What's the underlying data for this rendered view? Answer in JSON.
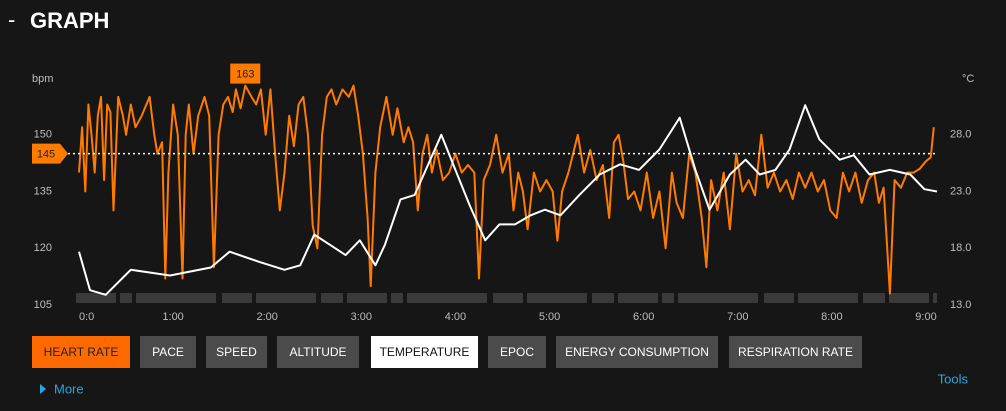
{
  "header": {
    "toggle": "-",
    "title": "GRAPH"
  },
  "chart_data": {
    "type": "line",
    "ylabel": "bpm",
    "y2label": "°C",
    "xlim": [
      0,
      547
    ],
    "ylim": [
      105,
      165
    ],
    "y2lim": [
      13,
      33
    ],
    "xticks": [
      {
        "value": 0,
        "label": "0:0"
      },
      {
        "value": 60,
        "label": "1:00"
      },
      {
        "value": 120,
        "label": "2:00"
      },
      {
        "value": 180,
        "label": "3:00"
      },
      {
        "value": 240,
        "label": "4:00"
      },
      {
        "value": 300,
        "label": "5:00"
      },
      {
        "value": 360,
        "label": "6:00"
      },
      {
        "value": 420,
        "label": "7:00"
      },
      {
        "value": 480,
        "label": "8:00"
      },
      {
        "value": 540,
        "label": "9:00"
      }
    ],
    "yticks": [
      105,
      120,
      135,
      150
    ],
    "y2ticks": [
      {
        "value": 13,
        "label": "13.0"
      },
      {
        "value": 18,
        "label": "18.0"
      },
      {
        "value": 23,
        "label": "23.0"
      },
      {
        "value": 28,
        "label": "28.0"
      }
    ],
    "average": 145,
    "max": 163,
    "series": [
      {
        "name": "HEART RATE",
        "color": "#ff7b00",
        "x": [
          0,
          2,
          4,
          6,
          8,
          10,
          12,
          14,
          16,
          18,
          20,
          22,
          25,
          28,
          30,
          33,
          36,
          40,
          45,
          48,
          50,
          53,
          55,
          57,
          60,
          63,
          66,
          68,
          70,
          73,
          76,
          80,
          83,
          86,
          89,
          92,
          95,
          98,
          100,
          103,
          106,
          110,
          113,
          116,
          119,
          122,
          125,
          128,
          131,
          134,
          137,
          140,
          143,
          146,
          149,
          152,
          155,
          158,
          161,
          164,
          168,
          172,
          175,
          178,
          181,
          184,
          186,
          189,
          192,
          196,
          200,
          203,
          207,
          210,
          213,
          216,
          219,
          222,
          225,
          228,
          232,
          236,
          240,
          244,
          248,
          252,
          255,
          258,
          262,
          266,
          270,
          274,
          277,
          280,
          283,
          286,
          290,
          294,
          298,
          302,
          305,
          308,
          312,
          315,
          318,
          322,
          326,
          330,
          334,
          338,
          341,
          344,
          347,
          350,
          354,
          358,
          362,
          366,
          370,
          374,
          378,
          381,
          385,
          389,
          393,
          397,
          400,
          403,
          407,
          411,
          415,
          419,
          423,
          427,
          431,
          435,
          439,
          443,
          447,
          451,
          455,
          459,
          463,
          467,
          471,
          475,
          479,
          483,
          487,
          491,
          495,
          499,
          503,
          507,
          510,
          513,
          517,
          520,
          524,
          528,
          532,
          536,
          540,
          543,
          545
        ],
        "values": [
          140,
          152,
          135,
          158,
          150,
          140,
          155,
          160,
          138,
          158,
          156,
          130,
          160,
          155,
          150,
          158,
          152,
          155,
          160,
          150,
          145,
          148,
          112,
          140,
          158,
          150,
          112,
          150,
          158,
          145,
          155,
          160,
          155,
          115,
          150,
          158,
          160,
          156,
          162,
          157,
          163,
          160,
          158,
          162,
          150,
          162,
          145,
          130,
          140,
          155,
          147,
          158,
          160,
          150,
          126,
          120,
          150,
          160,
          162,
          158,
          162,
          160,
          163,
          155,
          145,
          128,
          110,
          140,
          152,
          160,
          150,
          157,
          148,
          152,
          148,
          130,
          145,
          150,
          140,
          146,
          138,
          140,
          145,
          140,
          142,
          140,
          112,
          138,
          142,
          150,
          140,
          145,
          130,
          140,
          135,
          125,
          140,
          135,
          138,
          135,
          122,
          135,
          140,
          145,
          150,
          140,
          146,
          138,
          142,
          128,
          148,
          150,
          143,
          133,
          135,
          130,
          140,
          128,
          135,
          120,
          140,
          132,
          128,
          145,
          140,
          128,
          115,
          138,
          130,
          140,
          125,
          145,
          135,
          138,
          134,
          150,
          136,
          140,
          135,
          138,
          133,
          140,
          136,
          140,
          135,
          138,
          130,
          128,
          140,
          135,
          140,
          132,
          138,
          140,
          132,
          136,
          108,
          138,
          136,
          140,
          140,
          141,
          143,
          144,
          152
        ]
      },
      {
        "name": "TEMPERATURE",
        "color": "#ffffff",
        "axis": "y2",
        "x": [
          0,
          7,
          17,
          33,
          58,
          84,
          96,
          115,
          131,
          141,
          150,
          160,
          170,
          179,
          189,
          195,
          205,
          214,
          224,
          231,
          240,
          249,
          259,
          268,
          278,
          288,
          297,
          307,
          319,
          332,
          345,
          357,
          370,
          383,
          393,
          402,
          415,
          425,
          434,
          444,
          453,
          463,
          472,
          485,
          494,
          504,
          517,
          530,
          539,
          547
        ],
        "values": [
          17.7,
          14.3,
          13.9,
          16.1,
          15.6,
          16.3,
          17.7,
          16.8,
          16.1,
          16.5,
          19.2,
          18.3,
          17.4,
          18.7,
          16.5,
          18.3,
          22.3,
          22.7,
          25.8,
          28.0,
          24.9,
          21.8,
          18.7,
          20.1,
          20.1,
          20.9,
          21.4,
          20.9,
          22.7,
          24.5,
          25.4,
          24.9,
          26.7,
          29.5,
          24.9,
          21.4,
          24.5,
          25.8,
          24.5,
          24.9,
          26.7,
          30.6,
          27.6,
          25.8,
          26.2,
          24.5,
          24.9,
          24.5,
          23.2,
          23.0
        ]
      }
    ]
  },
  "buttons": [
    {
      "label": "HEART RATE",
      "state": "active"
    },
    {
      "label": "PACE",
      "state": "off"
    },
    {
      "label": "SPEED",
      "state": "off"
    },
    {
      "label": "ALTITUDE",
      "state": "off"
    },
    {
      "label": "TEMPERATURE",
      "state": "selected"
    },
    {
      "label": "EPOC",
      "state": "off"
    },
    {
      "label": "ENERGY CONSUMPTION",
      "state": "off"
    },
    {
      "label": "RESPIRATION RATE",
      "state": "off"
    }
  ],
  "more": "More",
  "tools": "Tools"
}
